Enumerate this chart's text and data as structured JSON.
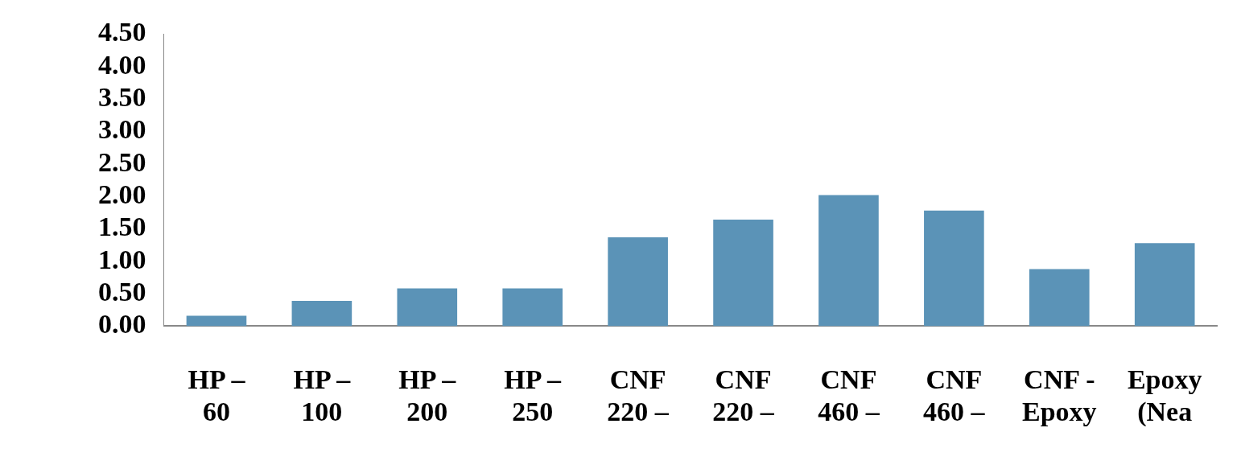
{
  "chart_data": {
    "type": "bar",
    "categories": [
      "HP – 60",
      "HP – 100",
      "HP – 200",
      "HP – 250",
      "CNF 220 –",
      "CNF 220 –",
      "CNF 460 –",
      "CNF 460 –",
      "CNF - Epoxy",
      "Epoxy (Nea"
    ],
    "values": [
      0.16,
      0.39,
      0.58,
      0.58,
      1.37,
      1.64,
      2.02,
      1.78,
      0.88,
      1.28
    ],
    "color": "#5b93b7",
    "ylim": [
      0,
      4.5
    ],
    "yticks": [
      {
        "value": 0,
        "label": "0.00"
      },
      {
        "value": 0.5,
        "label": "0.50"
      },
      {
        "value": 1,
        "label": "1.00"
      },
      {
        "value": 1.5,
        "label": "1.50"
      },
      {
        "value": 2,
        "label": "2.00"
      },
      {
        "value": 2.5,
        "label": "2.50"
      },
      {
        "value": 3,
        "label": "3.00"
      },
      {
        "value": 3.5,
        "label": "3.50"
      },
      {
        "value": 4,
        "label": "4.00"
      },
      {
        "value": 4.5,
        "label": "4.50"
      }
    ],
    "grid": false,
    "legend": false
  }
}
